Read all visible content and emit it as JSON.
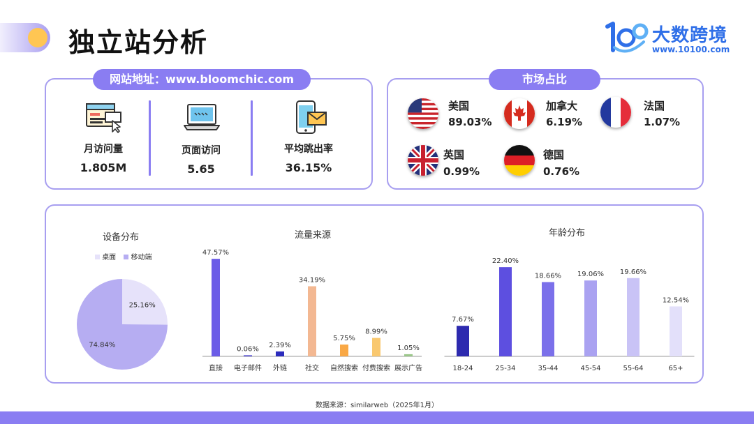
{
  "header": {
    "title": "独立站分析"
  },
  "logo": {
    "name": "大数跨境",
    "url": "www.10100.com"
  },
  "site": {
    "label": "网站地址：www.bloomchic.com",
    "metrics": [
      {
        "icon": "browser-window-icon",
        "label": "月访问量",
        "value": "1.805M"
      },
      {
        "icon": "laptop-icon",
        "label": "页面访问",
        "value": "5.65"
      },
      {
        "icon": "phone-mail-icon",
        "label": "平均跳出率",
        "value": "36.15%"
      }
    ]
  },
  "market": {
    "label": "市场占比",
    "countries": [
      {
        "flag": "us-flag-icon",
        "name": "美国",
        "value": "89.03%"
      },
      {
        "flag": "canada-flag-icon",
        "name": "加拿大",
        "value": "6.19%"
      },
      {
        "flag": "france-flag-icon",
        "name": "法国",
        "value": "1.07%"
      },
      {
        "flag": "uk-flag-icon",
        "name": "英国",
        "value": "0.99%"
      },
      {
        "flag": "germany-flag-icon",
        "name": "德国",
        "value": "0.76%"
      }
    ]
  },
  "chart_data": [
    {
      "type": "pie",
      "title": "设备分布",
      "legend_placement": "top",
      "slices": [
        {
          "name": "桌面",
          "value": 25.16,
          "label": "25.16%",
          "color": "#e6e2fa"
        },
        {
          "name": "移动端",
          "value": 74.84,
          "label": "74.84%",
          "color": "#b6adf2"
        }
      ]
    },
    {
      "type": "bar",
      "title": "流量来源",
      "categories": [
        "直接",
        "电子邮件",
        "外链",
        "社交",
        "自然搜索",
        "付费搜索",
        "展示广告"
      ],
      "values": [
        47.57,
        0.06,
        2.39,
        34.19,
        5.75,
        8.99,
        1.05
      ],
      "labels": [
        "47.57%",
        "0.06%",
        "2.39%",
        "34.19%",
        "5.75%",
        "8.99%",
        "1.05%"
      ],
      "colors": [
        "#6b5ce7",
        "#3b34c9",
        "#2c2cbd",
        "#f3b892",
        "#f9a845",
        "#f9c86f",
        "#9bc78a"
      ],
      "ylim": [
        0,
        50
      ],
      "grid": false
    },
    {
      "type": "bar",
      "title": "年龄分布",
      "categories": [
        "18-24",
        "25-34",
        "35-44",
        "45-54",
        "55-64",
        "65+"
      ],
      "values": [
        7.67,
        22.4,
        18.66,
        19.06,
        19.66,
        12.54
      ],
      "labels": [
        "7.67%",
        "22.40%",
        "18.66%",
        "19.06%",
        "19.66%",
        "12.54%"
      ],
      "colors": [
        "#2d2aaf",
        "#5d4fe0",
        "#7b70ea",
        "#aaa2f1",
        "#c9c3f6",
        "#e3e0fa"
      ],
      "ylim": [
        0,
        24
      ],
      "grid": false
    }
  ],
  "footer": {
    "source": "数据来源：similarweb（2025年1月）"
  },
  "colors": {
    "accent": "#8a7df2",
    "border": "#a79ef0",
    "logo_blue": "#2f6fe8",
    "dot": "#ffc653"
  }
}
